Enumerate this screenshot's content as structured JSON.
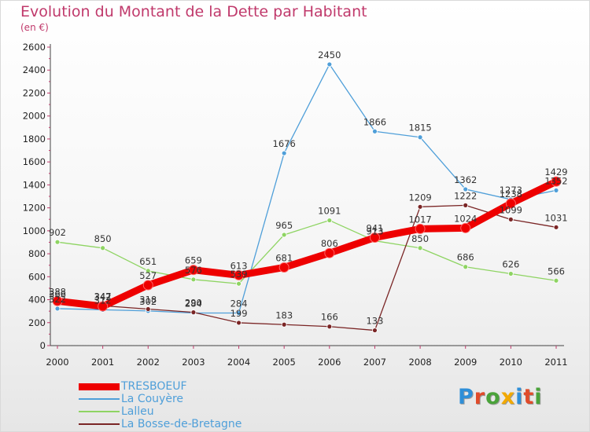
{
  "header": {
    "title": "Evolution du Montant de la Dette par Habitant",
    "subtitle": "(en €)"
  },
  "logo": {
    "text": "Proxiti",
    "colors": [
      "#2f8fd8",
      "#e04b2a",
      "#4aa33a",
      "#f2a900",
      "#2f8fd8",
      "#e04b2a",
      "#4aa33a"
    ]
  },
  "chart_data": {
    "type": "line",
    "title": "Evolution du Montant de la Dette par Habitant",
    "subtitle": "(en €)",
    "xlabel": "",
    "ylabel": "",
    "x": [
      "2000",
      "2001",
      "2002",
      "2003",
      "2004",
      "2005",
      "2006",
      "2007",
      "2008",
      "2009",
      "2010",
      "2011"
    ],
    "y_ticks": [
      "0",
      "200",
      "400",
      "600",
      "800",
      "1000",
      "1200",
      "1400",
      "1600",
      "1800",
      "2000",
      "2200",
      "2400",
      "2600"
    ],
    "ylim": [
      0,
      2600
    ],
    "grid": false,
    "legend_position": "bottom-left",
    "series": [
      {
        "name": "TRESBOEUF",
        "color": "#ee0000",
        "values": [
          388,
          342,
          527,
          659,
          613,
          681,
          806,
          941,
          1017,
          1024,
          1238,
          1429
        ]
      },
      {
        "name": "La Couyère",
        "color": "#4f9fd9",
        "values": [
          322,
          312,
          302,
          284,
          284,
          1676,
          2450,
          1866,
          1815,
          1362,
          1273,
          1352
        ]
      },
      {
        "name": "Lalleu",
        "color": "#8ed462",
        "values": [
          902,
          850,
          651,
          576,
          539,
          965,
          1091,
          913,
          850,
          686,
          626,
          566
        ]
      },
      {
        "name": "La Bosse-de-Bretagne",
        "color": "#7a2525",
        "values": [
          366,
          347,
          318,
          290,
          199,
          183,
          166,
          133,
          1209,
          1222,
          1099,
          1031
        ]
      }
    ]
  }
}
